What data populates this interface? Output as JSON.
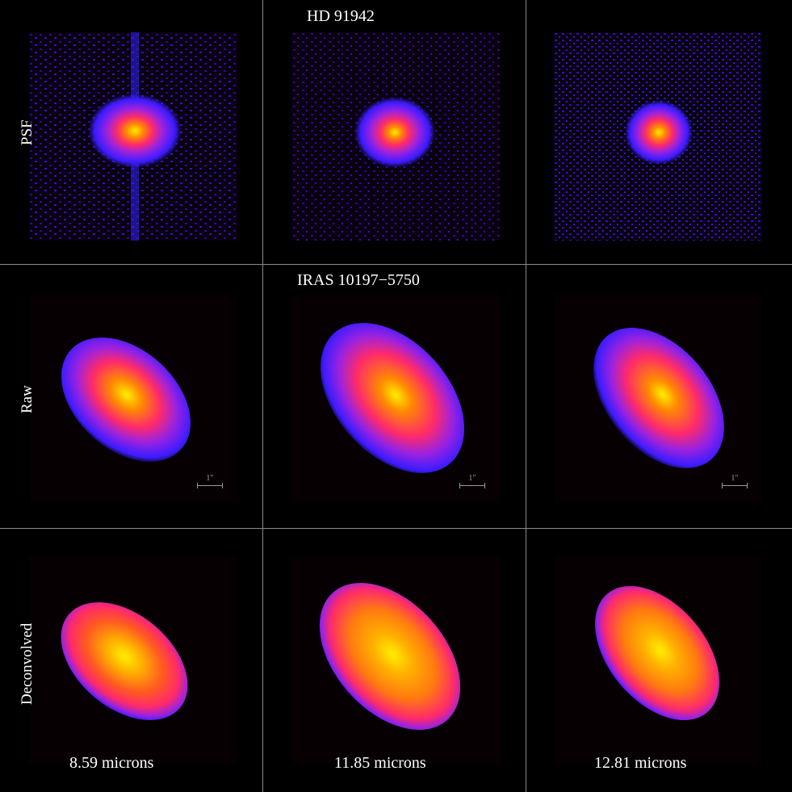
{
  "figure": {
    "top_title": "HD 91942",
    "middle_title": "IRAS 10197−5750",
    "row_labels": [
      "PSF",
      "Raw",
      "Deconvolved"
    ],
    "column_labels": [
      "8.59 microns",
      "11.85 microns",
      "12.81 microns"
    ],
    "scale_bar_label": "1″",
    "colormap": [
      "#12001e",
      "#3a1cff",
      "#9a22e0",
      "#ff2a6a",
      "#ff8a00",
      "#ffee00"
    ]
  }
}
